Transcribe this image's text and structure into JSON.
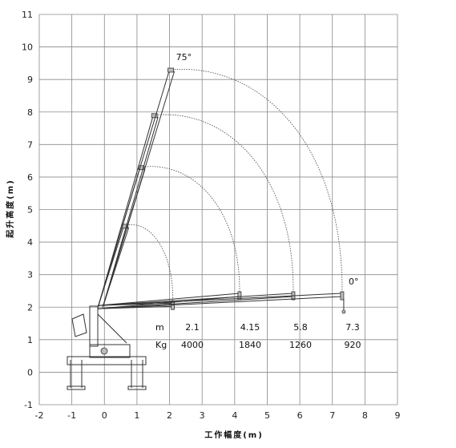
{
  "chart_data": {
    "type": "line",
    "title": "",
    "xlabel": "工作幅度(m)",
    "ylabel": "起升高度(m)",
    "xlim": [
      -2,
      9
    ],
    "ylim": [
      -1,
      11
    ],
    "x_ticks": [
      "-2",
      "-1",
      "0",
      "1",
      "2",
      "3",
      "4",
      "5",
      "6",
      "7",
      "8",
      "9"
    ],
    "y_ticks": [
      "-1",
      "0",
      "1",
      "2",
      "3",
      "4",
      "5",
      "6",
      "7",
      "8",
      "9",
      "10",
      "11"
    ],
    "grid": true,
    "boom_pivot": [
      0,
      2.1
    ],
    "angle_labels": [
      {
        "text": "75°",
        "x": 2.2,
        "y": 9.6
      },
      {
        "text": "0°",
        "x": 7.5,
        "y": 2.7
      }
    ],
    "boom_sections": [
      {
        "radius": 2.1,
        "tip_75": [
          0.6,
          4.5
        ],
        "tip_0": [
          2.1,
          2.1
        ]
      },
      {
        "radius": 4.15,
        "tip_75": [
          1.1,
          6.3
        ],
        "tip_0": [
          4.15,
          2.4
        ]
      },
      {
        "radius": 5.8,
        "tip_75": [
          1.5,
          7.9
        ],
        "tip_0": [
          5.8,
          2.4
        ]
      },
      {
        "radius": 7.3,
        "tip_75": [
          2.0,
          9.3
        ],
        "tip_0": [
          7.3,
          2.4
        ]
      }
    ],
    "load_table": {
      "headers": [
        "m",
        "Kg"
      ],
      "radius_m": [
        "2.1",
        "4.15",
        "5.8",
        "7.3"
      ],
      "load_kg": [
        "4000",
        "1840",
        "1260",
        "920"
      ]
    }
  }
}
